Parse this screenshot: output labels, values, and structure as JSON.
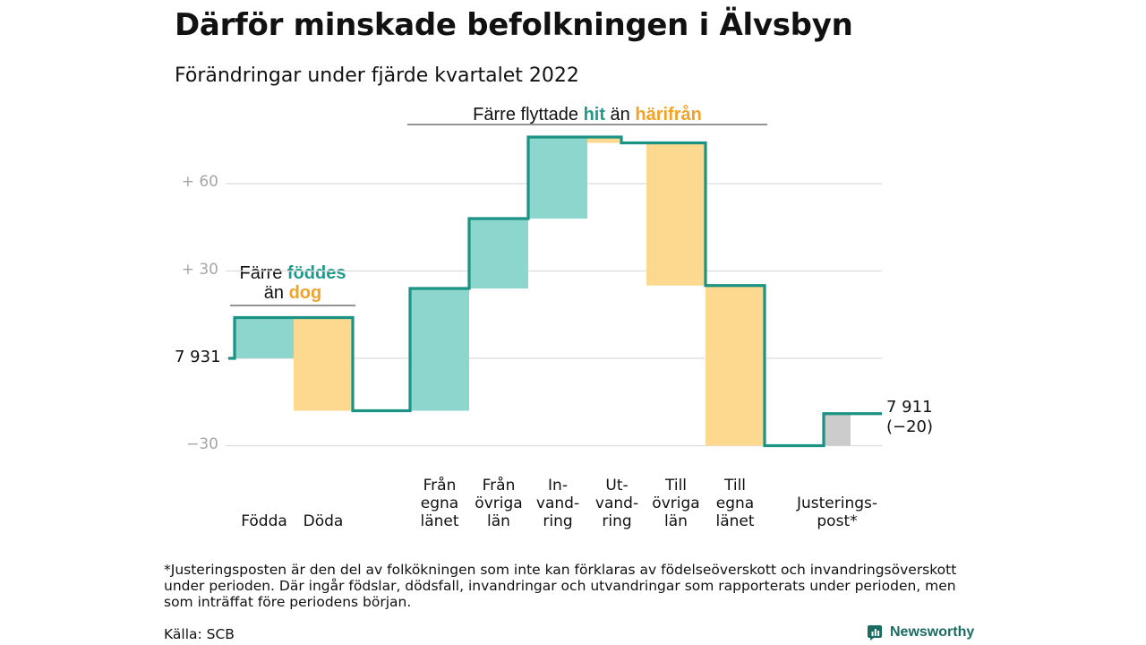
{
  "title": "Därför minskade befolkningen i Älvsbyn",
  "subtitle": "Förändringar under fjärde kvartalet 2022",
  "colors": {
    "inflow": "#8dd6cd",
    "outflow": "#fdd88f",
    "adjustment": "#cccccc",
    "step_line": "#1b9384",
    "grid": "#dcdcdc",
    "hit": "#21998a",
    "harifran": "#f0a328"
  },
  "group_migration": {
    "pre": "Färre flyttade ",
    "hit": "hit",
    "mid": " än ",
    "harifran": "härifrån"
  },
  "group_births": {
    "pre": "Färre ",
    "hit": "föddes",
    "line2_pre": "än ",
    "harifran": "dog"
  },
  "start_label": "7 931",
  "end_label": {
    "line1": "7 911",
    "line2": "(−20)"
  },
  "footnote": "*Justeringsposten är den del av folkökningen som inte kan förklaras av födelseöverskott och invandringsöverskott under perioden. Där ingår födslar, dödsfall, invandringar och utvandringar som rapporterats under perioden, men som inträffat före periodens början.",
  "source": "Källa: SCB",
  "brand": "Newsworthy",
  "chart_data": {
    "type": "bar",
    "subtype": "waterfall",
    "baseline": 7931,
    "baseline_label": "7 931",
    "ylim": [
      -35,
      80
    ],
    "yticks": [
      {
        "value": -30,
        "label": "−30"
      },
      {
        "value": 0,
        "label": ""
      },
      {
        "value": 30,
        "label": "+ 30"
      },
      {
        "value": 60,
        "label": "+ 60"
      }
    ],
    "grid": true,
    "steps": [
      {
        "category": "Födda",
        "label_lines": [
          "Födda"
        ],
        "value": 14,
        "kind": "inflow"
      },
      {
        "category": "Döda",
        "label_lines": [
          "Döda"
        ],
        "value": -32,
        "kind": "outflow"
      },
      {
        "category": "Från egna länet",
        "label_lines": [
          "Från",
          "egna",
          "länet"
        ],
        "value": 42,
        "kind": "inflow"
      },
      {
        "category": "Från övriga län",
        "label_lines": [
          "Från",
          "övriga",
          "län"
        ],
        "value": 24,
        "kind": "inflow"
      },
      {
        "category": "Invandring",
        "label_lines": [
          "In-",
          "vand-",
          "ring"
        ],
        "value": 28,
        "kind": "inflow"
      },
      {
        "category": "Utvandring",
        "label_lines": [
          "Ut-",
          "vand-",
          "ring"
        ],
        "value": -2,
        "kind": "outflow"
      },
      {
        "category": "Till övriga län",
        "label_lines": [
          "Till",
          "övriga",
          "län"
        ],
        "value": -49,
        "kind": "outflow"
      },
      {
        "category": "Till egna länet",
        "label_lines": [
          "Till",
          "egna",
          "länet"
        ],
        "value": -55,
        "kind": "outflow"
      },
      {
        "category": "Justeringspost*",
        "label_lines": [
          "Justerings-",
          "post*"
        ],
        "value": 11,
        "kind": "adjustment"
      }
    ],
    "end_value": 7911,
    "end_change": -20
  }
}
